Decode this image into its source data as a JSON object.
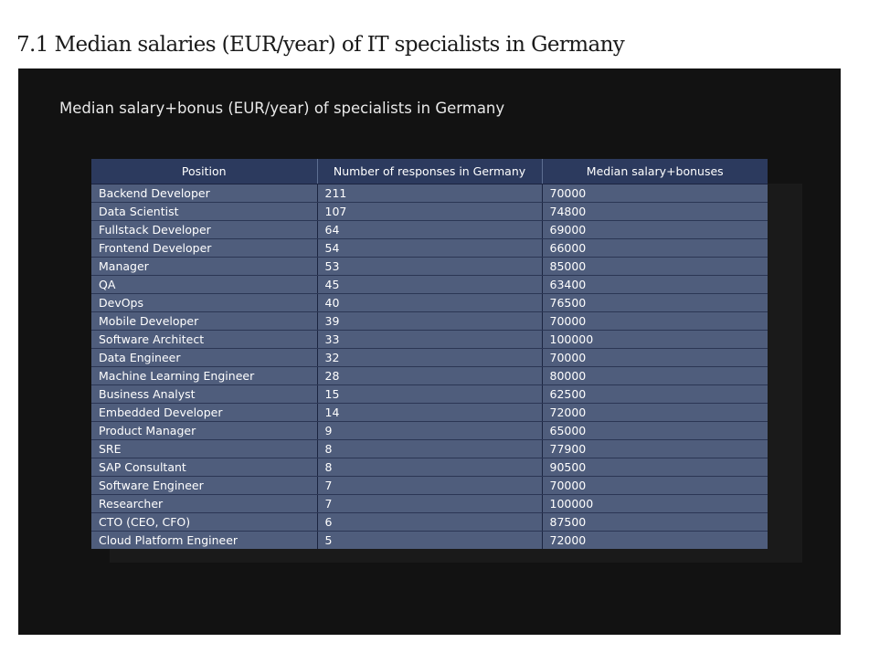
{
  "page": {
    "heading": "7.1 Median salaries (EUR/year) of IT specialists in Germany"
  },
  "panel": {
    "title": "Median salary+bonus (EUR/year) of specialists in Germany"
  },
  "table": {
    "headers": [
      "Position",
      "Number of responses in Germany",
      "Median salary+bonuses"
    ],
    "rows": [
      [
        "Backend Developer",
        "211",
        "70000"
      ],
      [
        "Data Scientist",
        "107",
        "74800"
      ],
      [
        "Fullstack Developer",
        "64",
        "69000"
      ],
      [
        "Frontend Developer",
        "54",
        "66000"
      ],
      [
        "Manager",
        "53",
        "85000"
      ],
      [
        "QA",
        "45",
        "63400"
      ],
      [
        "DevOps",
        "40",
        "76500"
      ],
      [
        "Mobile Developer",
        "39",
        "70000"
      ],
      [
        "Software Architect",
        "33",
        "100000"
      ],
      [
        "Data Engineer",
        "32",
        "70000"
      ],
      [
        "Machine Learning Engineer",
        "28",
        "80000"
      ],
      [
        "Business Analyst",
        "15",
        "62500"
      ],
      [
        "Embedded Developer",
        "14",
        "72000"
      ],
      [
        "Product Manager",
        "9",
        "65000"
      ],
      [
        "SRE",
        "8",
        "77900"
      ],
      [
        "SAP Consultant",
        "8",
        "90500"
      ],
      [
        "Software Engineer",
        "7",
        "70000"
      ],
      [
        "Researcher",
        "7",
        "100000"
      ],
      [
        "CTO (CEO, CFO)",
        "6",
        "87500"
      ],
      [
        "Cloud Platform Engineer",
        "5",
        "72000"
      ]
    ]
  },
  "colors": {
    "panel_background": "#121212",
    "header_background": "#2c3a5e",
    "row_background": "#4f5d7c"
  }
}
